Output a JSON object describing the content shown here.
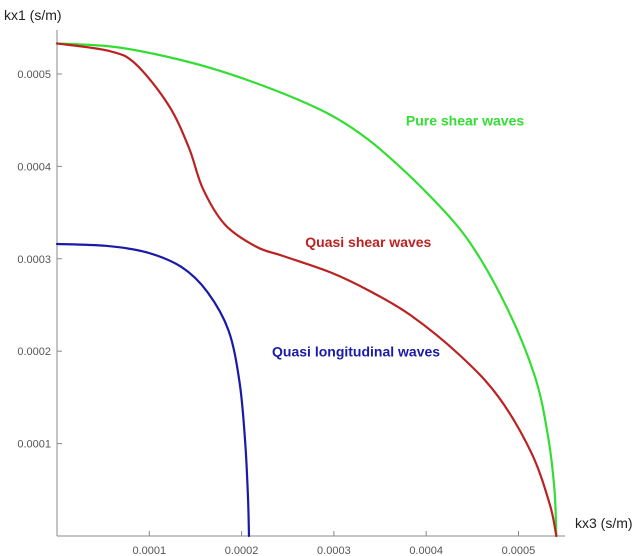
{
  "chart_data": {
    "type": "line",
    "xlabel": "kx3 (s/m)",
    "ylabel": "kx1 (s/m)",
    "xlim": [
      0,
      0.000545
    ],
    "ylim": [
      0,
      0.00054
    ],
    "x_ticks": [
      {
        "value": 0.0001,
        "label": "0.0001"
      },
      {
        "value": 0.0002,
        "label": "0.0002"
      },
      {
        "value": 0.0003,
        "label": "0.0003"
      },
      {
        "value": 0.0004,
        "label": "0.0004"
      },
      {
        "value": 0.0005,
        "label": "0.0005"
      }
    ],
    "y_ticks": [
      {
        "value": 0.0001,
        "label": "0.0001"
      },
      {
        "value": 0.0002,
        "label": "0.0002"
      },
      {
        "value": 0.0003,
        "label": "0.0003"
      },
      {
        "value": 0.0004,
        "label": "0.0004"
      },
      {
        "value": 0.0005,
        "label": "0.0005"
      }
    ],
    "grid": false,
    "series": [
      {
        "name": "Pure shear waves",
        "color": "#33dd33",
        "points": [
          [
            0.0,
            0.000533
          ],
          [
            5.6e-05,
            0.00053
          ],
          [
            0.000104,
            0.000522
          ],
          [
            0.000168,
            0.000506
          ],
          [
            0.000232,
            0.000484
          ],
          [
            0.000286,
            0.000461
          ],
          [
            0.000319,
            0.000442
          ],
          [
            0.000352,
            0.000417
          ],
          [
            0.000403,
            0.000369
          ],
          [
            0.000447,
            0.000318
          ],
          [
            0.000488,
            0.000246
          ],
          [
            0.000518,
            0.000172
          ],
          [
            0.000532,
            0.000108
          ],
          [
            0.000539,
            5e-05
          ],
          [
            0.000541,
            0.0
          ]
        ],
        "label_pos": [
          0.000378,
          0.000444
        ]
      },
      {
        "name": "Quasi shear waves",
        "color": "#bb2222",
        "points": [
          [
            0.0,
            0.000533
          ],
          [
            5.6e-05,
            0.000525
          ],
          [
            8.5e-05,
            0.000511
          ],
          [
            0.000121,
            0.000466
          ],
          [
            0.000143,
            0.00042
          ],
          [
            0.000158,
            0.000376
          ],
          [
            0.000182,
            0.000337
          ],
          [
            0.000216,
            0.000313
          ],
          [
            0.000245,
            0.000303
          ],
          [
            0.000297,
            0.000285
          ],
          [
            0.000339,
            0.000265
          ],
          [
            0.000383,
            0.000239
          ],
          [
            0.000436,
            0.000196
          ],
          [
            0.000478,
            0.000151
          ],
          [
            0.000514,
            9e-05
          ],
          [
            0.000534,
            3.4e-05
          ],
          [
            0.000541,
            0.0
          ]
        ],
        "label_pos": [
          0.000269,
          0.000313
        ]
      },
      {
        "name": "Quasi longitudinal waves",
        "color": "#1a1aa8",
        "points": [
          [
            0.0,
            0.000316
          ],
          [
            5.3e-05,
            0.000314
          ],
          [
            9.7e-05,
            0.000307
          ],
          [
            0.000135,
            0.000291
          ],
          [
            0.000163,
            0.000264
          ],
          [
            0.000186,
            0.000222
          ],
          [
            0.000198,
            0.000165
          ],
          [
            0.000204,
            0.0001
          ],
          [
            0.000207,
            4e-05
          ],
          [
            0.000208,
            0.0
          ]
        ],
        "label_pos": [
          0.000233,
          0.000194
        ]
      }
    ]
  }
}
